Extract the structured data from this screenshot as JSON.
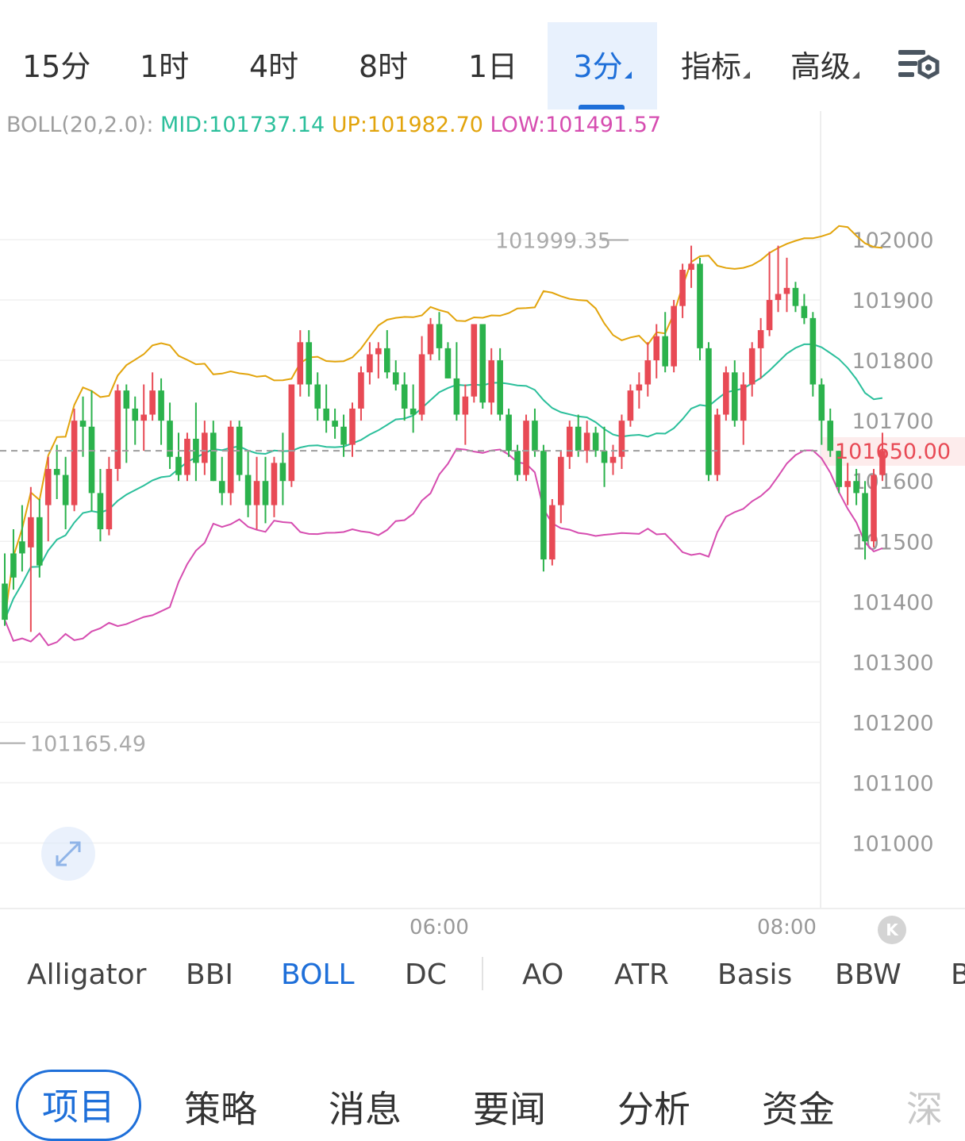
{
  "timeframe_tabs": [
    {
      "label": "15分",
      "active": false
    },
    {
      "label": "1时",
      "active": false
    },
    {
      "label": "4时",
      "active": false
    },
    {
      "label": "8时",
      "active": false
    },
    {
      "label": "1日",
      "active": false
    },
    {
      "label": "3分",
      "active": true,
      "has_dropdown": true
    },
    {
      "label": "指标",
      "active": false,
      "has_dropdown": true
    },
    {
      "label": "高级",
      "active": false,
      "has_dropdown": true
    }
  ],
  "settings_icon": "chart-settings-icon",
  "boll_legend": {
    "name": "BOLL(20,2.0):",
    "mid": "MID:101737.14",
    "up": "UP:101982.70",
    "low": "LOW:101491.57",
    "colors": {
      "name": "#9e9e9e",
      "mid": "#2bbf9b",
      "up": "#e2a40c",
      "low": "#d64db0"
    }
  },
  "chart_data": {
    "type": "candlestick",
    "indicator": "BOLL",
    "y_ticks": [
      "102000",
      "101900",
      "101800",
      "101700",
      "101600",
      "101500",
      "101400",
      "101300",
      "101200",
      "101100",
      "101000"
    ],
    "ylim": [
      100890,
      102210
    ],
    "x_ticks": [
      {
        "label": "06:00",
        "index": 50
      },
      {
        "label": "08:00",
        "index": 90
      }
    ],
    "last_price": "101650.00",
    "high_marker": "101999.35",
    "low_marker": "101165.49",
    "colors": {
      "up": "#e84a55",
      "down": "#2bb24c",
      "mid": "#2bbf9b",
      "upper": "#e2a40c",
      "lower": "#d64db0",
      "last": "#e84a55"
    },
    "candles": [
      [
        101430,
        101480,
        101360,
        101370
      ],
      [
        101480,
        101520,
        101420,
        101440
      ],
      [
        101500,
        101560,
        101450,
        101480
      ],
      [
        101490,
        101590,
        101350,
        101540
      ],
      [
        101540,
        101570,
        101440,
        101460
      ],
      [
        101560,
        101640,
        101500,
        101620
      ],
      [
        101620,
        101660,
        101570,
        101610
      ],
      [
        101610,
        101640,
        101520,
        101560
      ],
      [
        101560,
        101720,
        101550,
        101700
      ],
      [
        101700,
        101740,
        101640,
        101690
      ],
      [
        101690,
        101750,
        101550,
        101580
      ],
      [
        101580,
        101620,
        101500,
        101520
      ],
      [
        101520,
        101640,
        101510,
        101620
      ],
      [
        101620,
        101760,
        101600,
        101750
      ],
      [
        101750,
        101760,
        101630,
        101720
      ],
      [
        101720,
        101740,
        101660,
        101700
      ],
      [
        101700,
        101760,
        101650,
        101710
      ],
      [
        101710,
        101780,
        101700,
        101750
      ],
      [
        101750,
        101770,
        101660,
        101700
      ],
      [
        101700,
        101730,
        101620,
        101640
      ],
      [
        101640,
        101680,
        101600,
        101610
      ],
      [
        101610,
        101680,
        101600,
        101670
      ],
      [
        101670,
        101730,
        101600,
        101630
      ],
      [
        101630,
        101700,
        101610,
        101680
      ],
      [
        101680,
        101700,
        101600,
        101600
      ],
      [
        101600,
        101640,
        101560,
        101580
      ],
      [
        101580,
        101700,
        101560,
        101690
      ],
      [
        101690,
        101700,
        101600,
        101610
      ],
      [
        101610,
        101650,
        101540,
        101560
      ],
      [
        101560,
        101640,
        101520,
        101600
      ],
      [
        101600,
        101640,
        101530,
        101560
      ],
      [
        101560,
        101640,
        101540,
        101630
      ],
      [
        101630,
        101680,
        101560,
        101600
      ],
      [
        101600,
        101760,
        101590,
        101760
      ],
      [
        101760,
        101850,
        101740,
        101830
      ],
      [
        101830,
        101850,
        101740,
        101760
      ],
      [
        101760,
        101780,
        101700,
        101720
      ],
      [
        101720,
        101760,
        101680,
        101700
      ],
      [
        101700,
        101720,
        101670,
        101690
      ],
      [
        101690,
        101710,
        101640,
        101660
      ],
      [
        101660,
        101730,
        101640,
        101720
      ],
      [
        101720,
        101790,
        101700,
        101780
      ],
      [
        101780,
        101830,
        101760,
        101810
      ],
      [
        101810,
        101830,
        101770,
        101820
      ],
      [
        101820,
        101850,
        101770,
        101780
      ],
      [
        101780,
        101800,
        101750,
        101760
      ],
      [
        101760,
        101780,
        101700,
        101720
      ],
      [
        101720,
        101760,
        101680,
        101710
      ],
      [
        101710,
        101840,
        101700,
        101810
      ],
      [
        101810,
        101870,
        101800,
        101860
      ],
      [
        101860,
        101880,
        101800,
        101820
      ],
      [
        101820,
        101830,
        101770,
        101770
      ],
      [
        101770,
        101830,
        101700,
        101710
      ],
      [
        101710,
        101760,
        101660,
        101740
      ],
      [
        101740,
        101860,
        101730,
        101860
      ],
      [
        101860,
        101860,
        101720,
        101730
      ],
      [
        101730,
        101820,
        101710,
        101800
      ],
      [
        101800,
        101820,
        101700,
        101710
      ],
      [
        101710,
        101720,
        101640,
        101650
      ],
      [
        101650,
        101660,
        101600,
        101610
      ],
      [
        101610,
        101710,
        101600,
        101700
      ],
      [
        101700,
        101720,
        101640,
        101650
      ],
      [
        101650,
        101660,
        101450,
        101470
      ],
      [
        101470,
        101570,
        101460,
        101560
      ],
      [
        101560,
        101650,
        101530,
        101640
      ],
      [
        101640,
        101700,
        101620,
        101690
      ],
      [
        101690,
        101710,
        101640,
        101650
      ],
      [
        101650,
        101700,
        101630,
        101680
      ],
      [
        101680,
        101690,
        101640,
        101650
      ],
      [
        101650,
        101690,
        101590,
        101630
      ],
      [
        101630,
        101660,
        101610,
        101640
      ],
      [
        101640,
        101710,
        101620,
        101700
      ],
      [
        101700,
        101760,
        101690,
        101750
      ],
      [
        101750,
        101780,
        101720,
        101760
      ],
      [
        101760,
        101830,
        101740,
        101800
      ],
      [
        101800,
        101860,
        101770,
        101840
      ],
      [
        101840,
        101880,
        101780,
        101790
      ],
      [
        101790,
        101900,
        101780,
        101890
      ],
      [
        101890,
        101960,
        101870,
        101950
      ],
      [
        101950,
        101990,
        101920,
        101960
      ],
      [
        101960,
        101970,
        101800,
        101820
      ],
      [
        101820,
        101830,
        101600,
        101610
      ],
      [
        101610,
        101720,
        101600,
        101710
      ],
      [
        101710,
        101790,
        101700,
        101780
      ],
      [
        101780,
        101800,
        101690,
        101700
      ],
      [
        101700,
        101780,
        101660,
        101760
      ],
      [
        101760,
        101830,
        101740,
        101820
      ],
      [
        101820,
        101870,
        101770,
        101850
      ],
      [
        101850,
        101980,
        101840,
        101900
      ],
      [
        101900,
        101990,
        101880,
        101910
      ],
      [
        101910,
        101970,
        101880,
        101920
      ],
      [
        101920,
        101930,
        101880,
        101890
      ],
      [
        101890,
        101910,
        101860,
        101870
      ],
      [
        101870,
        101880,
        101740,
        101760
      ],
      [
        101760,
        101770,
        101660,
        101700
      ],
      [
        101700,
        101720,
        101640,
        101650
      ],
      [
        101650,
        101650,
        101580,
        101590
      ],
      [
        101590,
        101630,
        101560,
        101600
      ],
      [
        101600,
        101620,
        101560,
        101580
      ],
      [
        101580,
        101600,
        101470,
        101500
      ],
      [
        101500,
        101620,
        101490,
        101610
      ],
      [
        101610,
        101680,
        101600,
        101650
      ]
    ]
  },
  "indicator_tabs": [
    {
      "label": "Alligator",
      "active": false
    },
    {
      "label": "BBI",
      "active": false
    },
    {
      "label": "BOLL",
      "active": true
    },
    {
      "label": "DC",
      "active": false
    },
    {
      "label": "AO",
      "active": false
    },
    {
      "label": "ATR",
      "active": false
    },
    {
      "label": "Basis",
      "active": false
    },
    {
      "label": "BBW",
      "active": false
    },
    {
      "label": "B",
      "active": false
    }
  ],
  "bottom_tabs": [
    {
      "label": "项目",
      "active": true
    },
    {
      "label": "策略",
      "active": false
    },
    {
      "label": "消息",
      "active": false
    },
    {
      "label": "要闻",
      "active": false
    },
    {
      "label": "分析",
      "active": false
    },
    {
      "label": "资金",
      "active": false
    },
    {
      "label": "深",
      "active": false,
      "faded": true
    }
  ],
  "expand_icon": "expand-arrows-icon",
  "kline_button_label": "K"
}
